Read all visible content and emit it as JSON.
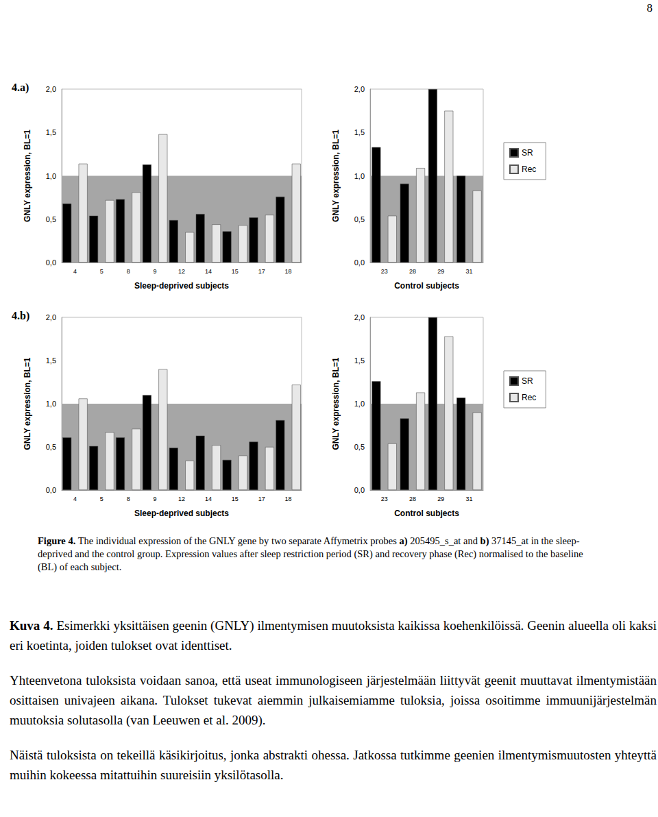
{
  "page_number": "8",
  "chart_data": [
    {
      "type": "bar",
      "title": "4.a)",
      "ylabel": "GNLY expression, BL=1",
      "xlabel": "Sleep-deprived subjects",
      "categories": [
        "4",
        "5",
        "8",
        "9",
        "12",
        "14",
        "15",
        "17",
        "18"
      ],
      "series": [
        {
          "name": "SR",
          "color": "#000000",
          "values": [
            0.68,
            0.54,
            0.73,
            1.13,
            0.49,
            0.56,
            0.36,
            0.52,
            0.76
          ]
        },
        {
          "name": "Rec",
          "color": "#e8e8e8",
          "values": [
            1.14,
            0.72,
            0.81,
            1.48,
            0.35,
            0.44,
            0.43,
            0.55,
            1.14
          ]
        }
      ],
      "ylim": [
        0,
        2
      ],
      "yticks": [
        {
          "value": 0,
          "label": "0,0"
        },
        {
          "value": 0.5,
          "label": "0,5"
        },
        {
          "value": 1,
          "label": "1,0"
        },
        {
          "value": 1.5,
          "label": "1,5"
        },
        {
          "value": 2,
          "label": "2,0"
        }
      ],
      "baseline": 1,
      "grid": false
    },
    {
      "type": "bar",
      "ylabel": "GNLY expression, BL=1",
      "xlabel": "Control subjects",
      "categories": [
        "23",
        "28",
        "29",
        "31"
      ],
      "series": [
        {
          "name": "SR",
          "color": "#000000",
          "values": [
            1.33,
            0.91,
            2.0,
            1.0
          ]
        },
        {
          "name": "Rec",
          "color": "#e8e8e8",
          "values": [
            0.54,
            1.09,
            1.75,
            0.83
          ]
        }
      ],
      "ylim": [
        0,
        2
      ],
      "yticks": [
        {
          "value": 0,
          "label": "0,0"
        },
        {
          "value": 0.5,
          "label": "0,5"
        },
        {
          "value": 1,
          "label": "1,0"
        },
        {
          "value": 1.5,
          "label": "1,5"
        },
        {
          "value": 2,
          "label": "2,0"
        }
      ],
      "baseline": 1,
      "grid": false,
      "legend": "right"
    },
    {
      "type": "bar",
      "title": "4.b)",
      "ylabel": "GNLY expression, BL=1",
      "xlabel": "Sleep-deprived subjects",
      "categories": [
        "4",
        "5",
        "8",
        "9",
        "12",
        "14",
        "15",
        "17",
        "18"
      ],
      "series": [
        {
          "name": "SR",
          "color": "#000000",
          "values": [
            0.61,
            0.51,
            0.61,
            1.1,
            0.49,
            0.63,
            0.35,
            0.56,
            0.81
          ]
        },
        {
          "name": "Rec",
          "color": "#e8e8e8",
          "values": [
            1.06,
            0.67,
            0.71,
            1.4,
            0.34,
            0.52,
            0.4,
            0.5,
            1.22
          ]
        }
      ],
      "ylim": [
        0,
        2
      ],
      "yticks": [
        {
          "value": 0,
          "label": "0,0"
        },
        {
          "value": 0.5,
          "label": "0,5"
        },
        {
          "value": 1,
          "label": "1,0"
        },
        {
          "value": 1.5,
          "label": "1,5"
        },
        {
          "value": 2,
          "label": "2,0"
        }
      ],
      "baseline": 1,
      "grid": false
    },
    {
      "type": "bar",
      "ylabel": "GNLY expression, BL=1",
      "xlabel": "Control subjects",
      "categories": [
        "23",
        "28",
        "29",
        "31"
      ],
      "series": [
        {
          "name": "SR",
          "color": "#000000",
          "values": [
            1.26,
            0.83,
            2.0,
            1.07
          ]
        },
        {
          "name": "Rec",
          "color": "#e8e8e8",
          "values": [
            0.54,
            1.13,
            1.78,
            0.9
          ]
        }
      ],
      "ylim": [
        0,
        2
      ],
      "yticks": [
        {
          "value": 0,
          "label": "0,0"
        },
        {
          "value": 0.5,
          "label": "0,5"
        },
        {
          "value": 1,
          "label": "1,0"
        },
        {
          "value": 1.5,
          "label": "1,5"
        },
        {
          "value": 2,
          "label": "2,0"
        }
      ],
      "baseline": 1,
      "grid": false,
      "legend": "right"
    }
  ],
  "caption": [
    {
      "text": "Figure 4.",
      "bold": true
    },
    {
      "text": " The individual expression of the GNLY gene by two separate Affymetrix probes "
    },
    {
      "text": "a)",
      "bold": true
    },
    {
      "text": " 205495_s_at and "
    },
    {
      "text": "b)",
      "bold": true
    },
    {
      "text": " 37145_at in the sleep-deprived and the control group. Expression values after sleep restriction period (SR) and recovery phase (Rec) normalised to the baseline (BL) of each subject."
    }
  ],
  "paragraphs": [
    [
      {
        "text": "Kuva 4.",
        "bold": true
      },
      {
        "text": " Esimerkki yksittäisen geenin (GNLY) ilmentymisen muutoksista kaikissa koehenkilöissä. Geenin alueella oli kaksi eri koetinta, joiden tulokset ovat identtiset."
      }
    ],
    [
      {
        "text": "Yhteenvetona tuloksista voidaan sanoa, että useat immunologiseen järjestelmään liittyvät geenit muuttavat ilmentymistään osittaisen univajeen aikana. Tulokset tukevat aiemmin julkaisemiamme tuloksia, joissa osoitimme immuunijärjestelmän muutoksia solutasolla (van Leeuwen et al. 2009)."
      }
    ],
    [
      {
        "text": "Näistä tuloksista on tekeillä käsikirjoitus, jonka abstrakti ohessa. Jatkossa tutkimme geenien ilmentymismuutosten yhteyttä muihin kokeessa mitattuihin suureisiin yksilötasolla."
      }
    ]
  ]
}
